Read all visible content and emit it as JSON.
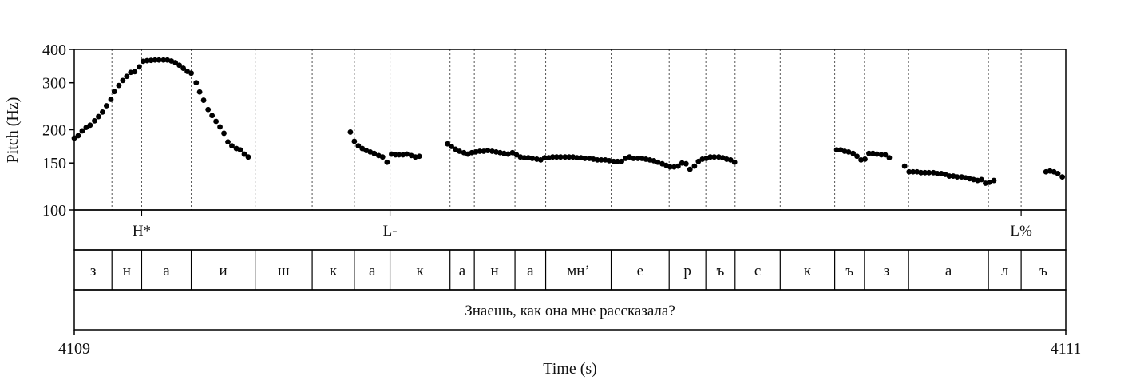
{
  "chart_data": {
    "type": "scatter",
    "xlabel": "Time (s)",
    "ylabel": "Pitch (Hz)",
    "xlim": [
      4109,
      4111
    ],
    "ylim": [
      100,
      400
    ],
    "y_scale": "log",
    "grid": false,
    "x_ticks": [
      "4109",
      "4111"
    ],
    "y_ticks": [
      {
        "label": "100",
        "value": 100
      },
      {
        "label": "150",
        "value": 150
      },
      {
        "label": "200",
        "value": 200
      },
      {
        "label": "300",
        "value": 300
      },
      {
        "label": "400",
        "value": 400
      }
    ],
    "segment_boundaries": [
      4109.076,
      4109.136,
      4109.236,
      4109.365,
      4109.48,
      4109.565,
      4109.637,
      4109.758,
      4109.807,
      4109.889,
      4109.951,
      4110.083,
      4110.2,
      4110.274,
      4110.333,
      4110.424,
      4110.534,
      4110.594,
      4110.683,
      4110.844,
      4110.91
    ],
    "tones": [
      {
        "label": "H*",
        "time": 4109.136
      },
      {
        "label": "L-",
        "time": 4109.637
      },
      {
        "label": "L%",
        "time": 4110.91
      }
    ],
    "segments": [
      {
        "label": "з",
        "start": 4109.0,
        "end": 4109.076
      },
      {
        "label": "н",
        "start": 4109.076,
        "end": 4109.136
      },
      {
        "label": "а",
        "start": 4109.136,
        "end": 4109.236
      },
      {
        "label": "и",
        "start": 4109.236,
        "end": 4109.365
      },
      {
        "label": "ш",
        "start": 4109.365,
        "end": 4109.48
      },
      {
        "label": "к",
        "start": 4109.48,
        "end": 4109.565
      },
      {
        "label": "а",
        "start": 4109.565,
        "end": 4109.637
      },
      {
        "label": "к",
        "start": 4109.637,
        "end": 4109.758
      },
      {
        "label": "а",
        "start": 4109.758,
        "end": 4109.807
      },
      {
        "label": "н",
        "start": 4109.807,
        "end": 4109.889
      },
      {
        "label": "а",
        "start": 4109.889,
        "end": 4109.951
      },
      {
        "label": "мн’",
        "start": 4109.951,
        "end": 4110.083
      },
      {
        "label": "е",
        "start": 4110.083,
        "end": 4110.2
      },
      {
        "label": "р",
        "start": 4110.2,
        "end": 4110.274
      },
      {
        "label": "ъ",
        "start": 4110.274,
        "end": 4110.333
      },
      {
        "label": "с",
        "start": 4110.333,
        "end": 4110.424
      },
      {
        "label": "к",
        "start": 4110.424,
        "end": 4110.534
      },
      {
        "label": "ъ",
        "start": 4110.534,
        "end": 4110.594
      },
      {
        "label": "з",
        "start": 4110.594,
        "end": 4110.683
      },
      {
        "label": "а",
        "start": 4110.683,
        "end": 4110.844
      },
      {
        "label": "л",
        "start": 4110.844,
        "end": 4110.91
      },
      {
        "label": "ъ",
        "start": 4110.91,
        "end": 4111.0
      }
    ],
    "sentence": "Знаешь, как она мне рассказала?",
    "points": [
      [
        4109.0,
        186
      ],
      [
        4109.008,
        190
      ],
      [
        4109.016,
        198
      ],
      [
        4109.024,
        204
      ],
      [
        4109.032,
        208
      ],
      [
        4109.041,
        216
      ],
      [
        4109.049,
        224
      ],
      [
        4109.057,
        233
      ],
      [
        4109.065,
        246
      ],
      [
        4109.074,
        260
      ],
      [
        4109.081,
        278
      ],
      [
        4109.09,
        293
      ],
      [
        4109.098,
        306
      ],
      [
        4109.106,
        317
      ],
      [
        4109.114,
        328
      ],
      [
        4109.122,
        330
      ],
      [
        4109.131,
        344
      ],
      [
        4109.139,
        361
      ],
      [
        4109.147,
        363
      ],
      [
        4109.155,
        364
      ],
      [
        4109.163,
        365
      ],
      [
        4109.171,
        365
      ],
      [
        4109.18,
        365
      ],
      [
        4109.188,
        365
      ],
      [
        4109.196,
        362
      ],
      [
        4109.204,
        357
      ],
      [
        4109.212,
        349
      ],
      [
        4109.22,
        340
      ],
      [
        4109.228,
        331
      ],
      [
        4109.236,
        326
      ],
      [
        4109.246,
        300
      ],
      [
        4109.253,
        277
      ],
      [
        4109.261,
        258
      ],
      [
        4109.27,
        238
      ],
      [
        4109.278,
        226
      ],
      [
        4109.286,
        215
      ],
      [
        4109.294,
        205
      ],
      [
        4109.302,
        194
      ],
      [
        4109.31,
        180
      ],
      [
        4109.318,
        174
      ],
      [
        4109.327,
        170
      ],
      [
        4109.335,
        168
      ],
      [
        4109.343,
        162
      ],
      [
        4109.351,
        158
      ],
      [
        4109.557,
        196
      ],
      [
        4109.565,
        181
      ],
      [
        4109.573,
        174
      ],
      [
        4109.581,
        170
      ],
      [
        4109.589,
        167
      ],
      [
        4109.597,
        165
      ],
      [
        4109.605,
        163
      ],
      [
        4109.614,
        160
      ],
      [
        4109.622,
        158
      ],
      [
        4109.631,
        151
      ],
      [
        4109.64,
        162
      ],
      [
        4109.648,
        161
      ],
      [
        4109.655,
        161
      ],
      [
        4109.663,
        161
      ],
      [
        4109.671,
        162
      ],
      [
        4109.68,
        160
      ],
      [
        4109.688,
        158
      ],
      [
        4109.696,
        159
      ],
      [
        4109.753,
        177
      ],
      [
        4109.761,
        173
      ],
      [
        4109.769,
        169
      ],
      [
        4109.777,
        166
      ],
      [
        4109.786,
        164
      ],
      [
        4109.794,
        162
      ],
      [
        4109.802,
        164
      ],
      [
        4109.81,
        165
      ],
      [
        4109.818,
        166
      ],
      [
        4109.826,
        166
      ],
      [
        4109.834,
        167
      ],
      [
        4109.843,
        166
      ],
      [
        4109.851,
        165
      ],
      [
        4109.859,
        164
      ],
      [
        4109.867,
        163
      ],
      [
        4109.875,
        162
      ],
      [
        4109.884,
        164
      ],
      [
        4109.892,
        161
      ],
      [
        4109.9,
        158
      ],
      [
        4109.908,
        157
      ],
      [
        4109.916,
        157
      ],
      [
        4109.924,
        156
      ],
      [
        4109.933,
        155
      ],
      [
        4109.941,
        154
      ],
      [
        4109.949,
        157
      ],
      [
        4109.957,
        157
      ],
      [
        4109.965,
        158
      ],
      [
        4109.973,
        158
      ],
      [
        4109.981,
        158
      ],
      [
        4109.99,
        158
      ],
      [
        4109.998,
        158
      ],
      [
        4110.006,
        158
      ],
      [
        4110.014,
        157
      ],
      [
        4110.022,
        157
      ],
      [
        4110.03,
        156
      ],
      [
        4110.039,
        156
      ],
      [
        4110.047,
        155
      ],
      [
        4110.055,
        154
      ],
      [
        4110.063,
        154
      ],
      [
        4110.071,
        154
      ],
      [
        4110.079,
        153
      ],
      [
        4110.088,
        152
      ],
      [
        4110.096,
        152
      ],
      [
        4110.104,
        152
      ],
      [
        4110.112,
        156
      ],
      [
        4110.12,
        158
      ],
      [
        4110.128,
        156
      ],
      [
        4110.137,
        156
      ],
      [
        4110.145,
        156
      ],
      [
        4110.153,
        155
      ],
      [
        4110.161,
        154
      ],
      [
        4110.169,
        153
      ],
      [
        4110.177,
        151
      ],
      [
        4110.186,
        149
      ],
      [
        4110.194,
        147
      ],
      [
        4110.202,
        145
      ],
      [
        4110.21,
        145
      ],
      [
        4110.218,
        146
      ],
      [
        4110.226,
        150
      ],
      [
        4110.234,
        149
      ],
      [
        4110.242,
        142
      ],
      [
        4110.251,
        146
      ],
      [
        4110.259,
        152
      ],
      [
        4110.267,
        155
      ],
      [
        4110.275,
        156
      ],
      [
        4110.283,
        158
      ],
      [
        4110.291,
        158
      ],
      [
        4110.3,
        158
      ],
      [
        4110.308,
        157
      ],
      [
        4110.316,
        155
      ],
      [
        4110.324,
        154
      ],
      [
        4110.332,
        151
      ],
      [
        4110.538,
        168
      ],
      [
        4110.546,
        168
      ],
      [
        4110.554,
        166
      ],
      [
        4110.562,
        165
      ],
      [
        4110.571,
        163
      ],
      [
        4110.579,
        159
      ],
      [
        4110.587,
        154
      ],
      [
        4110.595,
        155
      ],
      [
        4110.603,
        163
      ],
      [
        4110.611,
        163
      ],
      [
        4110.619,
        162
      ],
      [
        4110.628,
        161
      ],
      [
        4110.636,
        161
      ],
      [
        4110.644,
        157
      ],
      [
        4110.675,
        146
      ],
      [
        4110.684,
        139
      ],
      [
        4110.692,
        139
      ],
      [
        4110.7,
        139
      ],
      [
        4110.708,
        138
      ],
      [
        4110.716,
        138
      ],
      [
        4110.724,
        138
      ],
      [
        4110.733,
        138
      ],
      [
        4110.741,
        137
      ],
      [
        4110.749,
        137
      ],
      [
        4110.757,
        136
      ],
      [
        4110.765,
        134
      ],
      [
        4110.773,
        134
      ],
      [
        4110.781,
        133
      ],
      [
        4110.79,
        133
      ],
      [
        4110.798,
        132
      ],
      [
        4110.806,
        131
      ],
      [
        4110.814,
        130
      ],
      [
        4110.822,
        129
      ],
      [
        4110.83,
        130
      ],
      [
        4110.838,
        126
      ],
      [
        4110.846,
        127
      ],
      [
        4110.855,
        129
      ],
      [
        4110.96,
        139
      ],
      [
        4110.968,
        140
      ],
      [
        4110.976,
        139
      ],
      [
        4110.984,
        137
      ],
      [
        4110.993,
        133
      ]
    ]
  }
}
